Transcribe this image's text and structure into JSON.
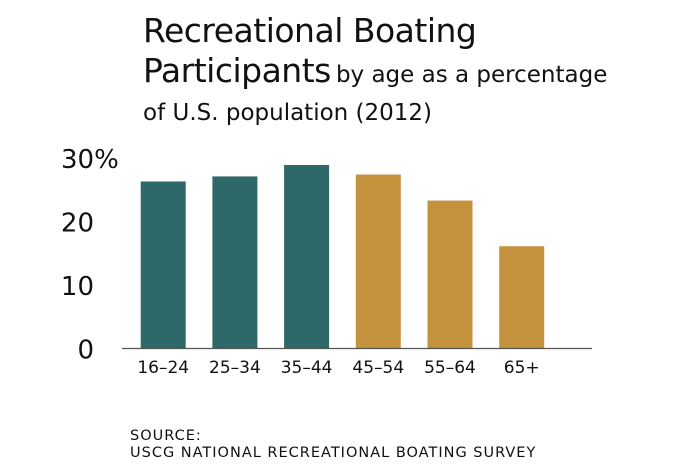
{
  "chart_data": {
    "type": "bar",
    "title_line1": "Recreational Boating",
    "title_line2": "Participants",
    "subtitle_line1": "by age as a percentage",
    "subtitle_line2": "of U.S. population (2012)",
    "categories": [
      "16–24",
      "25–34",
      "35–44",
      "45–54",
      "55–64",
      "65+"
    ],
    "values": [
      26.3,
      27.1,
      28.9,
      27.4,
      23.3,
      16.1
    ],
    "ylim": [
      0,
      30
    ],
    "yticks": [
      0,
      10,
      20,
      30
    ],
    "ytick_labels": [
      "0",
      "10",
      "20",
      "30%"
    ],
    "grid": false,
    "colors": [
      "#2e6868",
      "#2e6868",
      "#2e6868",
      "#c4913c",
      "#c4913c",
      "#c4913c"
    ],
    "source_line1": "SOURCE:",
    "source_line2": "USCG NATIONAL RECREATIONAL BOATING SURVEY"
  }
}
